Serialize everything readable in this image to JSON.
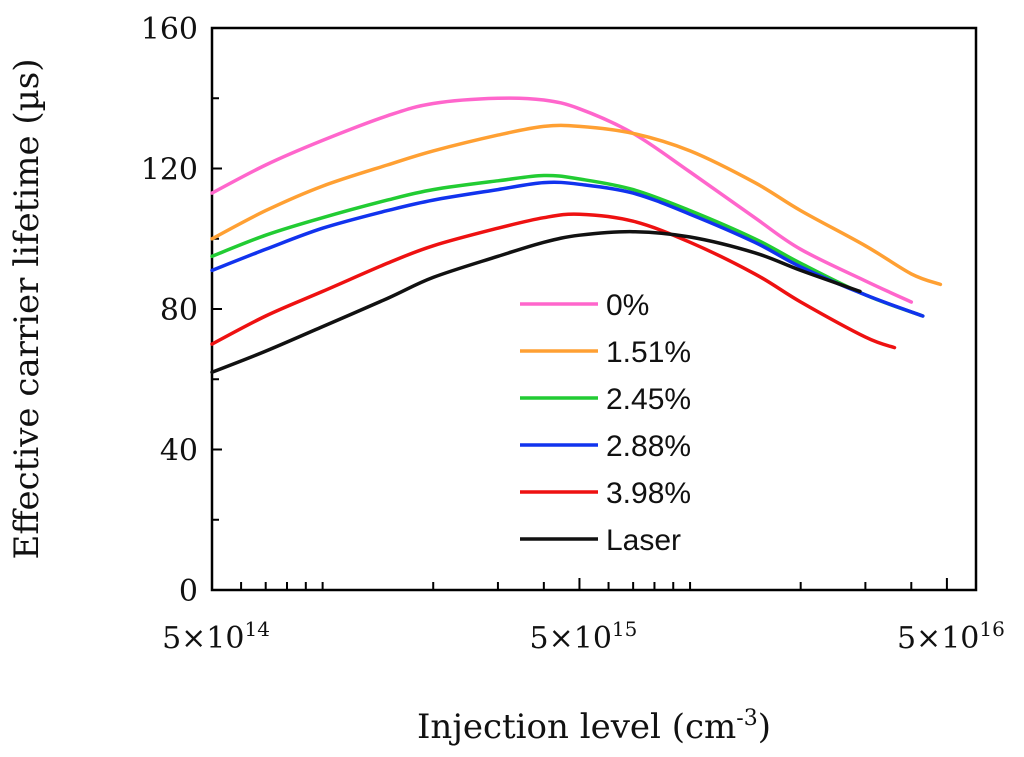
{
  "chart_data": {
    "type": "line",
    "xlabel": "Injection level (cm-3)",
    "xlabel_main": "Injection level (cm",
    "xlabel_sup": "-3",
    "xlabel_close": ")",
    "ylabel": "Effective carrier lifetime (µs)",
    "x_scale": "log",
    "xlim": [
      500000000000000.0,
      6e+16
    ],
    "ylim": [
      0,
      160
    ],
    "y_ticks": [
      0,
      40,
      80,
      120,
      160
    ],
    "x_tick_labels": [
      {
        "value": 500000000000000.0,
        "base": "5×10",
        "exp": "14"
      },
      {
        "value": 5000000000000000.0,
        "base": "5×10",
        "exp": "15"
      },
      {
        "value": 5e+16,
        "base": "5×10",
        "exp": "16"
      }
    ],
    "grid": false,
    "legend_position": "center-right",
    "series": [
      {
        "name": "0%",
        "color": "#ff66cc",
        "x": [
          500000000000000.0,
          700000000000000.0,
          1000000000000000.0,
          1500000000000000.0,
          2000000000000000.0,
          3000000000000000.0,
          4000000000000000.0,
          5000000000000000.0,
          7000000000000000.0,
          1e+16,
          1.5e+16,
          2e+16,
          3e+16,
          4e+16
        ],
        "y": [
          113,
          121,
          128,
          135,
          138.5,
          140,
          139.5,
          137,
          130,
          119,
          106,
          97,
          88,
          82
        ]
      },
      {
        "name": "1.51%",
        "color": "#ffa033",
        "x": [
          500000000000000.0,
          700000000000000.0,
          1000000000000000.0,
          1500000000000000.0,
          2000000000000000.0,
          3000000000000000.0,
          4000000000000000.0,
          5000000000000000.0,
          7000000000000000.0,
          1e+16,
          1.5e+16,
          2e+16,
          3e+16,
          4e+16,
          4.8e+16
        ],
        "y": [
          100,
          108,
          115,
          121,
          125,
          129.5,
          132,
          132,
          130,
          125,
          116,
          108,
          98,
          90,
          87
        ]
      },
      {
        "name": "2.45%",
        "color": "#22cc33",
        "x": [
          500000000000000.0,
          700000000000000.0,
          1000000000000000.0,
          1500000000000000.0,
          2000000000000000.0,
          3000000000000000.0,
          4000000000000000.0,
          5000000000000000.0,
          7000000000000000.0,
          1e+16,
          1.5e+16,
          2e+16,
          3e+16,
          4.3e+16
        ],
        "y": [
          95,
          101,
          106,
          111,
          114,
          116.5,
          118,
          117,
          114,
          108,
          100,
          93,
          84,
          78
        ]
      },
      {
        "name": "2.88%",
        "color": "#1133ee",
        "x": [
          500000000000000.0,
          700000000000000.0,
          1000000000000000.0,
          1500000000000000.0,
          2000000000000000.0,
          3000000000000000.0,
          4000000000000000.0,
          5000000000000000.0,
          7000000000000000.0,
          1e+16,
          1.5e+16,
          2e+16,
          3e+16,
          4.3e+16
        ],
        "y": [
          91,
          97,
          103,
          108,
          111,
          114,
          116,
          115.5,
          113,
          107,
          99,
          92,
          84,
          78
        ]
      },
      {
        "name": "3.98%",
        "color": "#ee1111",
        "x": [
          500000000000000.0,
          700000000000000.0,
          1000000000000000.0,
          1500000000000000.0,
          2000000000000000.0,
          3000000000000000.0,
          4000000000000000.0,
          5000000000000000.0,
          7000000000000000.0,
          1e+16,
          1.5e+16,
          2e+16,
          3e+16,
          3.6e+16
        ],
        "y": [
          70,
          78,
          85,
          93,
          98,
          103,
          106,
          107,
          105,
          99,
          90,
          82,
          72,
          69
        ]
      },
      {
        "name": "Laser",
        "color": "#111111",
        "x": [
          500000000000000.0,
          700000000000000.0,
          1000000000000000.0,
          1500000000000000.0,
          2000000000000000.0,
          3000000000000000.0,
          4000000000000000.0,
          5000000000000000.0,
          7000000000000000.0,
          1e+16,
          1.5e+16,
          2e+16,
          2.9e+16
        ],
        "y": [
          62,
          68,
          75,
          83,
          89,
          95,
          99,
          101,
          102,
          100.5,
          96,
          91,
          85
        ]
      }
    ]
  }
}
